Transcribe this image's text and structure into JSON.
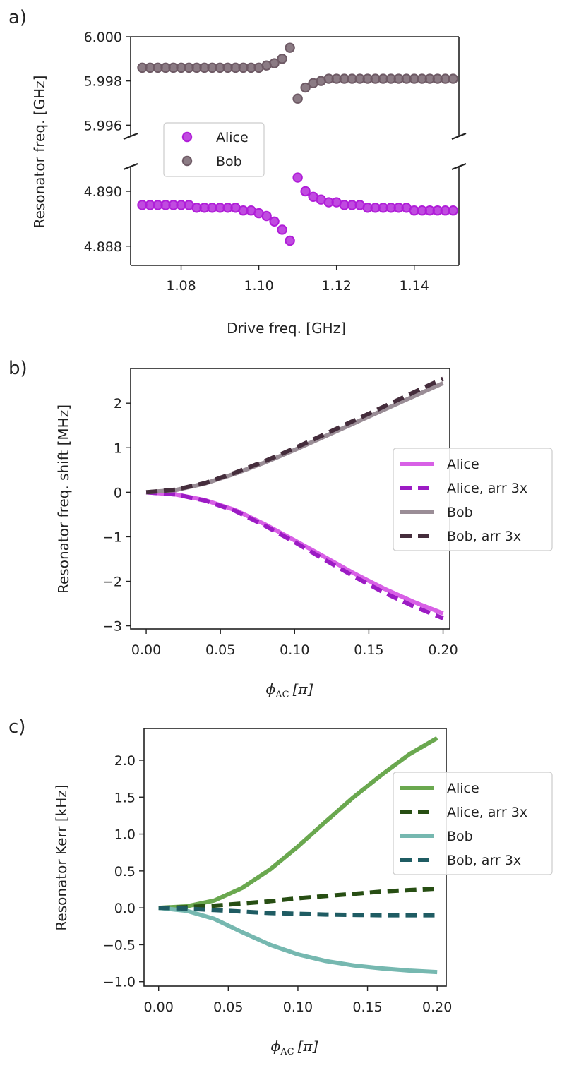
{
  "chart_data": [
    {
      "panel": "a)",
      "type": "scatter",
      "xlabel": "Drive freq. [GHz]",
      "ylabel": "Resonator freq. [GHz]",
      "xlim": [
        1.067,
        1.1515
      ],
      "broken_y_axis": true,
      "upper_ylim": [
        5.9955,
        6.0
      ],
      "lower_ylim": [
        4.8873,
        4.8909
      ],
      "x_ticks": [
        "1.08",
        "1.10",
        "1.12",
        "1.14"
      ],
      "x_tick_values": [
        1.08,
        1.1,
        1.12,
        1.14
      ],
      "upper_y_ticks": [
        "5.996",
        "5.998",
        "6.000"
      ],
      "upper_y_tick_values": [
        5.996,
        5.998,
        6.0
      ],
      "lower_y_ticks": [
        "4.888",
        "4.890"
      ],
      "lower_y_tick_values": [
        4.888,
        4.89
      ],
      "legend": [
        "Alice",
        "Bob"
      ],
      "series": [
        {
          "name": "Alice",
          "color": "#b01ed8",
          "x": [
            1.07,
            1.072,
            1.074,
            1.076,
            1.078,
            1.08,
            1.082,
            1.084,
            1.086,
            1.088,
            1.09,
            1.092,
            1.094,
            1.096,
            1.098,
            1.1,
            1.102,
            1.104,
            1.106,
            1.108,
            1.11,
            1.112,
            1.114,
            1.116,
            1.118,
            1.12,
            1.122,
            1.124,
            1.126,
            1.128,
            1.13,
            1.132,
            1.134,
            1.136,
            1.138,
            1.14,
            1.142,
            1.144,
            1.146,
            1.148,
            1.15
          ],
          "y": [
            4.8895,
            4.8895,
            4.8895,
            4.8895,
            4.8895,
            4.8895,
            4.8895,
            4.8894,
            4.8894,
            4.8894,
            4.8894,
            4.8894,
            4.8894,
            4.8893,
            4.8893,
            4.8892,
            4.8891,
            4.8889,
            4.8886,
            4.8882,
            4.8905,
            4.89,
            4.8898,
            4.8897,
            4.8896,
            4.8896,
            4.8895,
            4.8895,
            4.8895,
            4.8894,
            4.8894,
            4.8894,
            4.8894,
            4.8894,
            4.8894,
            4.8893,
            4.8893,
            4.8893,
            4.8893,
            4.8893,
            4.8893
          ]
        },
        {
          "name": "Bob",
          "color": "#6e5a65",
          "x": [
            1.07,
            1.072,
            1.074,
            1.076,
            1.078,
            1.08,
            1.082,
            1.084,
            1.086,
            1.088,
            1.09,
            1.092,
            1.094,
            1.096,
            1.098,
            1.1,
            1.102,
            1.104,
            1.106,
            1.108,
            1.11,
            1.112,
            1.114,
            1.116,
            1.118,
            1.12,
            1.122,
            1.124,
            1.126,
            1.128,
            1.13,
            1.132,
            1.134,
            1.136,
            1.138,
            1.14,
            1.142,
            1.144,
            1.146,
            1.148,
            1.15
          ],
          "y": [
            5.9986,
            5.9986,
            5.9986,
            5.9986,
            5.9986,
            5.9986,
            5.9986,
            5.9986,
            5.9986,
            5.9986,
            5.9986,
            5.9986,
            5.9986,
            5.9986,
            5.9986,
            5.9986,
            5.9987,
            5.9988,
            5.999,
            5.9995,
            5.9972,
            5.9977,
            5.9979,
            5.998,
            5.9981,
            5.9981,
            5.9981,
            5.9981,
            5.9981,
            5.9981,
            5.9981,
            5.9981,
            5.9981,
            5.9981,
            5.9981,
            5.9981,
            5.9981,
            5.9981,
            5.9981,
            5.9981,
            5.9981
          ]
        }
      ]
    },
    {
      "panel": "b)",
      "type": "line",
      "xlabel": "ϕ",
      "xlabel_sub": "AC",
      "xlabel_unit": "[π]",
      "ylabel": "Resonator freq. shift [MHz]",
      "xlim": [
        -0.0105,
        0.2045
      ],
      "ylim": [
        -3.07,
        2.78
      ],
      "x_ticks": [
        "0.00",
        "0.05",
        "0.10",
        "0.15",
        "0.20"
      ],
      "x_tick_values": [
        0.0,
        0.05,
        0.1,
        0.15,
        0.2
      ],
      "y_ticks": [
        "2",
        "1",
        "0",
        "−1",
        "−2",
        "−3"
      ],
      "y_tick_values": [
        2,
        1,
        0,
        -1,
        -2,
        -3
      ],
      "legend": [
        "Alice",
        "Alice, arr 3x",
        "Bob",
        "Bob, arr 3x"
      ],
      "series": [
        {
          "name": "Alice",
          "color": "#d860e6",
          "style": "solid",
          "x": [
            0.0,
            0.02,
            0.04,
            0.06,
            0.08,
            0.1,
            0.12,
            0.14,
            0.16,
            0.18,
            0.2
          ],
          "y": [
            0.0,
            -0.05,
            -0.18,
            -0.4,
            -0.72,
            -1.08,
            -1.45,
            -1.82,
            -2.16,
            -2.46,
            -2.72
          ]
        },
        {
          "name": "Alice, arr 3x",
          "color": "#9c1bc4",
          "style": "dashed",
          "x": [
            0.0,
            0.02,
            0.04,
            0.06,
            0.08,
            0.1,
            0.12,
            0.14,
            0.16,
            0.18,
            0.2
          ],
          "y": [
            0.0,
            -0.05,
            -0.19,
            -0.42,
            -0.75,
            -1.12,
            -1.51,
            -1.89,
            -2.25,
            -2.56,
            -2.83
          ]
        },
        {
          "name": "Bob",
          "color": "#9a8d96",
          "style": "solid",
          "x": [
            0.0,
            0.02,
            0.04,
            0.06,
            0.08,
            0.1,
            0.12,
            0.14,
            0.16,
            0.18,
            0.2
          ],
          "y": [
            0.0,
            0.05,
            0.2,
            0.42,
            0.67,
            0.95,
            1.25,
            1.55,
            1.85,
            2.15,
            2.45
          ]
        },
        {
          "name": "Bob, arr 3x",
          "color": "#452d3c",
          "style": "dashed",
          "x": [
            0.0,
            0.02,
            0.04,
            0.06,
            0.08,
            0.1,
            0.12,
            0.14,
            0.16,
            0.18,
            0.2
          ],
          "y": [
            0.0,
            0.06,
            0.21,
            0.44,
            0.7,
            0.99,
            1.3,
            1.61,
            1.92,
            2.24,
            2.55
          ]
        }
      ]
    },
    {
      "panel": "c)",
      "type": "line",
      "xlabel": "ϕ",
      "xlabel_sub": "AC",
      "xlabel_unit": "[π]",
      "ylabel": "Resonator Kerr [kHz]",
      "xlim": [
        -0.0105,
        0.2065
      ],
      "ylim": [
        -1.06,
        2.43
      ],
      "x_ticks": [
        "0.00",
        "0.05",
        "0.10",
        "0.15",
        "0.20"
      ],
      "x_tick_values": [
        0.0,
        0.05,
        0.1,
        0.15,
        0.2
      ],
      "y_ticks": [
        "2.0",
        "1.5",
        "1.0",
        "0.5",
        "0.0",
        "−0.5",
        "−1.0"
      ],
      "y_tick_values": [
        2.0,
        1.5,
        1.0,
        0.5,
        0.0,
        -0.5,
        -1.0
      ],
      "legend": [
        "Alice",
        "Alice, arr 3x",
        "Bob",
        "Bob, arr 3x"
      ],
      "series": [
        {
          "name": "Alice",
          "color": "#6aa84f",
          "style": "solid",
          "x": [
            0.0,
            0.02,
            0.04,
            0.06,
            0.08,
            0.1,
            0.12,
            0.14,
            0.16,
            0.18,
            0.2
          ],
          "y": [
            0.0,
            0.02,
            0.1,
            0.27,
            0.52,
            0.83,
            1.17,
            1.5,
            1.8,
            2.08,
            2.3
          ]
        },
        {
          "name": "Alice, arr 3x",
          "color": "#274e13",
          "style": "dashed",
          "x": [
            0.0,
            0.02,
            0.04,
            0.06,
            0.08,
            0.1,
            0.12,
            0.14,
            0.16,
            0.18,
            0.2
          ],
          "y": [
            0.0,
            0.01,
            0.03,
            0.06,
            0.09,
            0.13,
            0.16,
            0.19,
            0.22,
            0.24,
            0.26
          ]
        },
        {
          "name": "Bob",
          "color": "#76b8b0",
          "style": "solid",
          "x": [
            0.0,
            0.02,
            0.04,
            0.06,
            0.08,
            0.1,
            0.12,
            0.14,
            0.16,
            0.18,
            0.2
          ],
          "y": [
            0.0,
            -0.04,
            -0.15,
            -0.33,
            -0.5,
            -0.63,
            -0.72,
            -0.78,
            -0.82,
            -0.85,
            -0.87
          ]
        },
        {
          "name": "Bob, arr 3x",
          "color": "#1f5c63",
          "style": "dashed",
          "x": [
            0.0,
            0.02,
            0.04,
            0.06,
            0.08,
            0.1,
            0.12,
            0.14,
            0.16,
            0.18,
            0.2
          ],
          "y": [
            0.0,
            -0.01,
            -0.03,
            -0.05,
            -0.07,
            -0.08,
            -0.09,
            -0.095,
            -0.1,
            -0.1,
            -0.1
          ]
        }
      ]
    }
  ]
}
